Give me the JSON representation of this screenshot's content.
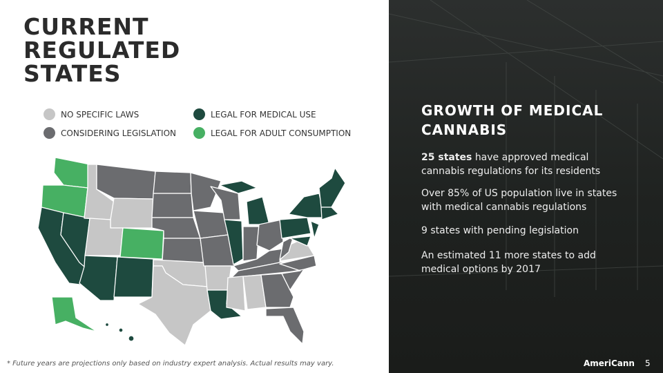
{
  "title": "CURRENT REGULATED STATES",
  "legend": [
    {
      "label": "NO SPECIFIC LAWS",
      "color": "#c6c6c6"
    },
    {
      "label": "CONSIDERING LEGISLATION",
      "color": "#6b6c6f"
    },
    {
      "label": "LEGAL FOR MEDICAL USE",
      "color": "#1e4a3f"
    },
    {
      "label": "LEGAL FOR ADULT CONSUMPTION",
      "color": "#47b063"
    }
  ],
  "panel": {
    "heading": "GROWTH OF MEDICAL CANNABIS",
    "points": [
      {
        "bold": "25 states",
        "text": "have approved medical cannabis regulations for its residents"
      },
      {
        "text": "Over 85% of US population live in states with medical cannabis regulations"
      },
      {
        "text": "9 states with pending legislation"
      },
      {
        "text": "An estimated 11 more states to add medical options by 2017"
      }
    ]
  },
  "footnote": "* Future years are projections only based on  industry expert analysis. Actual results may vary.",
  "logo": "AmeriCann",
  "page": 5
}
